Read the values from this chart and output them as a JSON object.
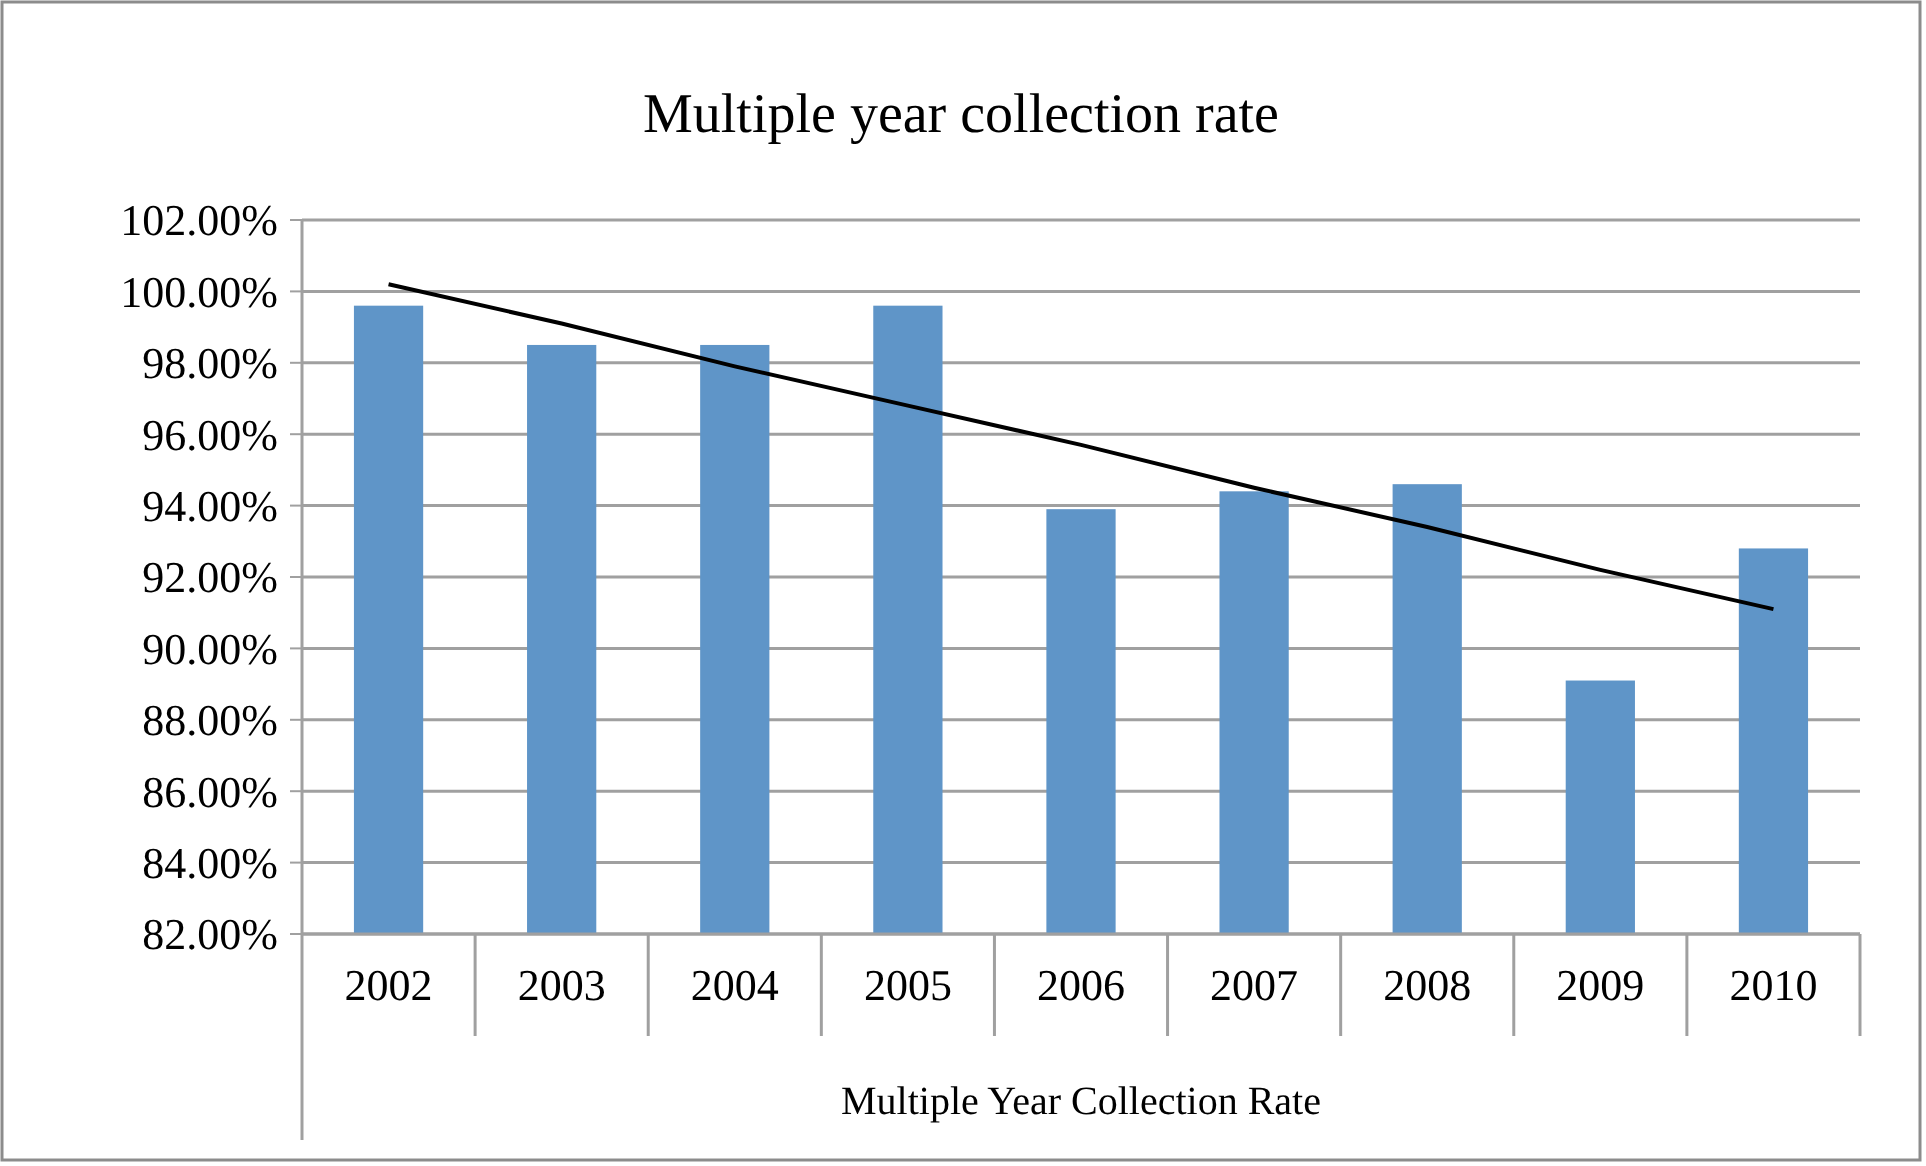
{
  "chart_data": {
    "type": "bar",
    "title": "Multiple year collection rate",
    "xlabel": "Multiple Year Collection Rate",
    "categories": [
      "2002",
      "2003",
      "2004",
      "2005",
      "2006",
      "2007",
      "2008",
      "2009",
      "2010"
    ],
    "series": [
      {
        "color": "#5f95c8",
        "values": [
          99.6,
          98.5,
          98.5,
          99.6,
          93.9,
          94.4,
          94.6,
          89.1,
          92.8
        ]
      },
      {
        "type": "line",
        "color": "#000000",
        "values": [
          100.2,
          99.1,
          97.9,
          96.8,
          95.7,
          94.5,
          93.4,
          92.2,
          91.1
        ]
      }
    ],
    "ylim": [
      82,
      102
    ],
    "yticks": [
      {
        "value": 82,
        "label": "82.00%"
      },
      {
        "value": 84,
        "label": "84.00%"
      },
      {
        "value": 86,
        "label": "86.00%"
      },
      {
        "value": 88,
        "label": "88.00%"
      },
      {
        "value": 90,
        "label": "90.00%"
      },
      {
        "value": 92,
        "label": "92.00%"
      },
      {
        "value": 94,
        "label": "94.00%"
      },
      {
        "value": 96,
        "label": "96.00%"
      },
      {
        "value": 98,
        "label": "98.00%"
      },
      {
        "value": 100,
        "label": "100.00%"
      },
      {
        "value": 102,
        "label": "102.00%"
      }
    ],
    "grid": "y"
  }
}
